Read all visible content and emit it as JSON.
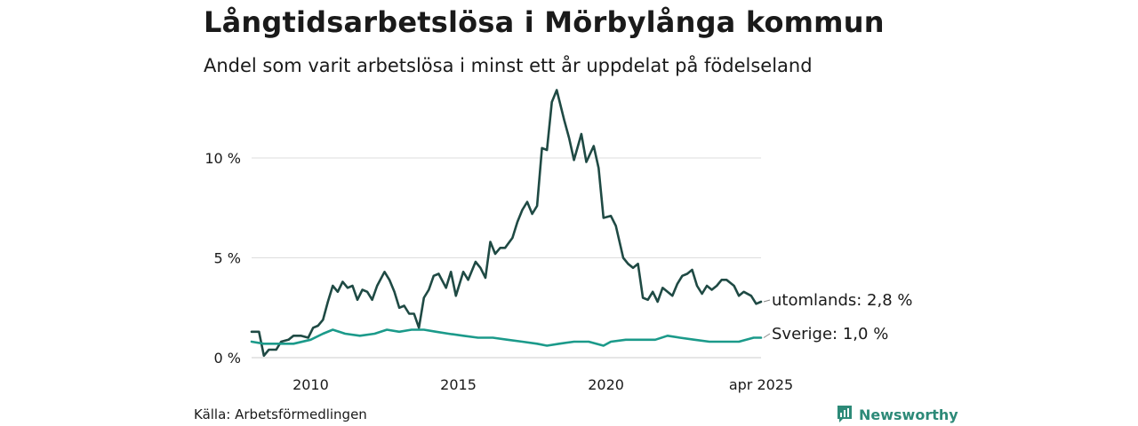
{
  "header": {
    "title": "Långtidsarbetslösa i Mörbylånga kommun",
    "subtitle": "Andel som varit arbetslösa i minst ett år uppdelat på födelseland"
  },
  "footer": {
    "source": "Källa: Arbetsförmedlingen",
    "brand": "Newsworthy",
    "brand_icon": "bar-chart-speech-icon"
  },
  "colors": {
    "utomlands": "#1f4a44",
    "sverige": "#1b9a8a",
    "grid": "#dddddd",
    "brand": "#2d8a78"
  },
  "chart_data": {
    "type": "line",
    "x_ticks": [
      {
        "date": "2010-01",
        "label": "2010"
      },
      {
        "date": "2015-01",
        "label": "2015"
      },
      {
        "date": "2020-01",
        "label": "2020"
      },
      {
        "date": "2025-04",
        "label": "apr 2025"
      }
    ],
    "y_ticks": [
      {
        "value": 0,
        "label": "0 %"
      },
      {
        "value": 5,
        "label": "5 %"
      },
      {
        "value": 10,
        "label": "10 %"
      }
    ],
    "x_range": [
      "2008-01",
      "2025-04"
    ],
    "ylim": [
      0,
      14
    ],
    "grid": true,
    "series": [
      {
        "name": "utomlands",
        "end_label": "utomlands: 2,8 %",
        "points": [
          [
            "2008-01",
            1.3
          ],
          [
            "2008-04",
            1.3
          ],
          [
            "2008-06",
            0.1
          ],
          [
            "2008-08",
            0.4
          ],
          [
            "2008-11",
            0.4
          ],
          [
            "2009-01",
            0.8
          ],
          [
            "2009-04",
            0.9
          ],
          [
            "2009-06",
            1.1
          ],
          [
            "2009-09",
            1.1
          ],
          [
            "2009-12",
            1.0
          ],
          [
            "2010-02",
            1.5
          ],
          [
            "2010-04",
            1.6
          ],
          [
            "2010-06",
            1.9
          ],
          [
            "2010-08",
            2.8
          ],
          [
            "2010-10",
            3.6
          ],
          [
            "2010-12",
            3.3
          ],
          [
            "2011-02",
            3.8
          ],
          [
            "2011-04",
            3.5
          ],
          [
            "2011-06",
            3.6
          ],
          [
            "2011-08",
            2.9
          ],
          [
            "2011-10",
            3.4
          ],
          [
            "2011-12",
            3.3
          ],
          [
            "2012-02",
            2.9
          ],
          [
            "2012-04",
            3.6
          ],
          [
            "2012-07",
            4.3
          ],
          [
            "2012-09",
            3.9
          ],
          [
            "2012-11",
            3.3
          ],
          [
            "2013-01",
            2.5
          ],
          [
            "2013-03",
            2.6
          ],
          [
            "2013-05",
            2.2
          ],
          [
            "2013-07",
            2.2
          ],
          [
            "2013-09",
            1.5
          ],
          [
            "2013-11",
            3.0
          ],
          [
            "2014-01",
            3.4
          ],
          [
            "2014-03",
            4.1
          ],
          [
            "2014-05",
            4.2
          ],
          [
            "2014-08",
            3.5
          ],
          [
            "2014-10",
            4.3
          ],
          [
            "2014-12",
            3.1
          ],
          [
            "2015-03",
            4.3
          ],
          [
            "2015-05",
            3.9
          ],
          [
            "2015-08",
            4.8
          ],
          [
            "2015-10",
            4.5
          ],
          [
            "2015-12",
            4.0
          ],
          [
            "2016-02",
            5.8
          ],
          [
            "2016-04",
            5.2
          ],
          [
            "2016-06",
            5.5
          ],
          [
            "2016-08",
            5.5
          ],
          [
            "2016-11",
            6.0
          ],
          [
            "2017-01",
            6.8
          ],
          [
            "2017-03",
            7.4
          ],
          [
            "2017-05",
            7.8
          ],
          [
            "2017-07",
            7.2
          ],
          [
            "2017-09",
            7.6
          ],
          [
            "2017-11",
            10.5
          ],
          [
            "2018-01",
            10.4
          ],
          [
            "2018-03",
            12.8
          ],
          [
            "2018-05",
            13.4
          ],
          [
            "2018-08",
            11.9
          ],
          [
            "2018-10",
            11.0
          ],
          [
            "2018-12",
            9.9
          ],
          [
            "2019-03",
            11.2
          ],
          [
            "2019-05",
            9.8
          ],
          [
            "2019-08",
            10.6
          ],
          [
            "2019-10",
            9.5
          ],
          [
            "2019-12",
            7.0
          ],
          [
            "2020-03",
            7.1
          ],
          [
            "2020-05",
            6.6
          ],
          [
            "2020-08",
            5.0
          ],
          [
            "2020-10",
            4.7
          ],
          [
            "2020-12",
            4.5
          ],
          [
            "2021-02",
            4.7
          ],
          [
            "2021-04",
            3.0
          ],
          [
            "2021-06",
            2.9
          ],
          [
            "2021-08",
            3.3
          ],
          [
            "2021-10",
            2.8
          ],
          [
            "2021-12",
            3.5
          ],
          [
            "2022-02",
            3.3
          ],
          [
            "2022-04",
            3.1
          ],
          [
            "2022-06",
            3.7
          ],
          [
            "2022-08",
            4.1
          ],
          [
            "2022-10",
            4.2
          ],
          [
            "2022-12",
            4.4
          ],
          [
            "2023-02",
            3.6
          ],
          [
            "2023-04",
            3.2
          ],
          [
            "2023-06",
            3.6
          ],
          [
            "2023-08",
            3.4
          ],
          [
            "2023-10",
            3.6
          ],
          [
            "2023-12",
            3.9
          ],
          [
            "2024-02",
            3.9
          ],
          [
            "2024-05",
            3.6
          ],
          [
            "2024-07",
            3.1
          ],
          [
            "2024-09",
            3.3
          ],
          [
            "2024-12",
            3.1
          ],
          [
            "2025-02",
            2.7
          ],
          [
            "2025-04",
            2.8
          ]
        ]
      },
      {
        "name": "Sverige",
        "end_label": "Sverige: 1,0 %",
        "points": [
          [
            "2008-01",
            0.8
          ],
          [
            "2008-06",
            0.7
          ],
          [
            "2009-01",
            0.7
          ],
          [
            "2009-06",
            0.7
          ],
          [
            "2010-01",
            0.9
          ],
          [
            "2010-06",
            1.2
          ],
          [
            "2010-10",
            1.4
          ],
          [
            "2011-03",
            1.2
          ],
          [
            "2011-09",
            1.1
          ],
          [
            "2012-03",
            1.2
          ],
          [
            "2012-08",
            1.4
          ],
          [
            "2013-01",
            1.3
          ],
          [
            "2013-06",
            1.4
          ],
          [
            "2013-11",
            1.4
          ],
          [
            "2014-04",
            1.3
          ],
          [
            "2014-09",
            1.2
          ],
          [
            "2015-03",
            1.1
          ],
          [
            "2015-09",
            1.0
          ],
          [
            "2016-03",
            1.0
          ],
          [
            "2016-09",
            0.9
          ],
          [
            "2017-03",
            0.8
          ],
          [
            "2017-09",
            0.7
          ],
          [
            "2018-01",
            0.6
          ],
          [
            "2018-06",
            0.7
          ],
          [
            "2018-12",
            0.8
          ],
          [
            "2019-06",
            0.8
          ],
          [
            "2019-12",
            0.6
          ],
          [
            "2020-03",
            0.8
          ],
          [
            "2020-09",
            0.9
          ],
          [
            "2021-03",
            0.9
          ],
          [
            "2021-09",
            0.9
          ],
          [
            "2022-02",
            1.1
          ],
          [
            "2022-07",
            1.0
          ],
          [
            "2023-01",
            0.9
          ],
          [
            "2023-07",
            0.8
          ],
          [
            "2024-01",
            0.8
          ],
          [
            "2024-07",
            0.8
          ],
          [
            "2025-01",
            1.0
          ],
          [
            "2025-04",
            1.0
          ]
        ]
      }
    ]
  }
}
